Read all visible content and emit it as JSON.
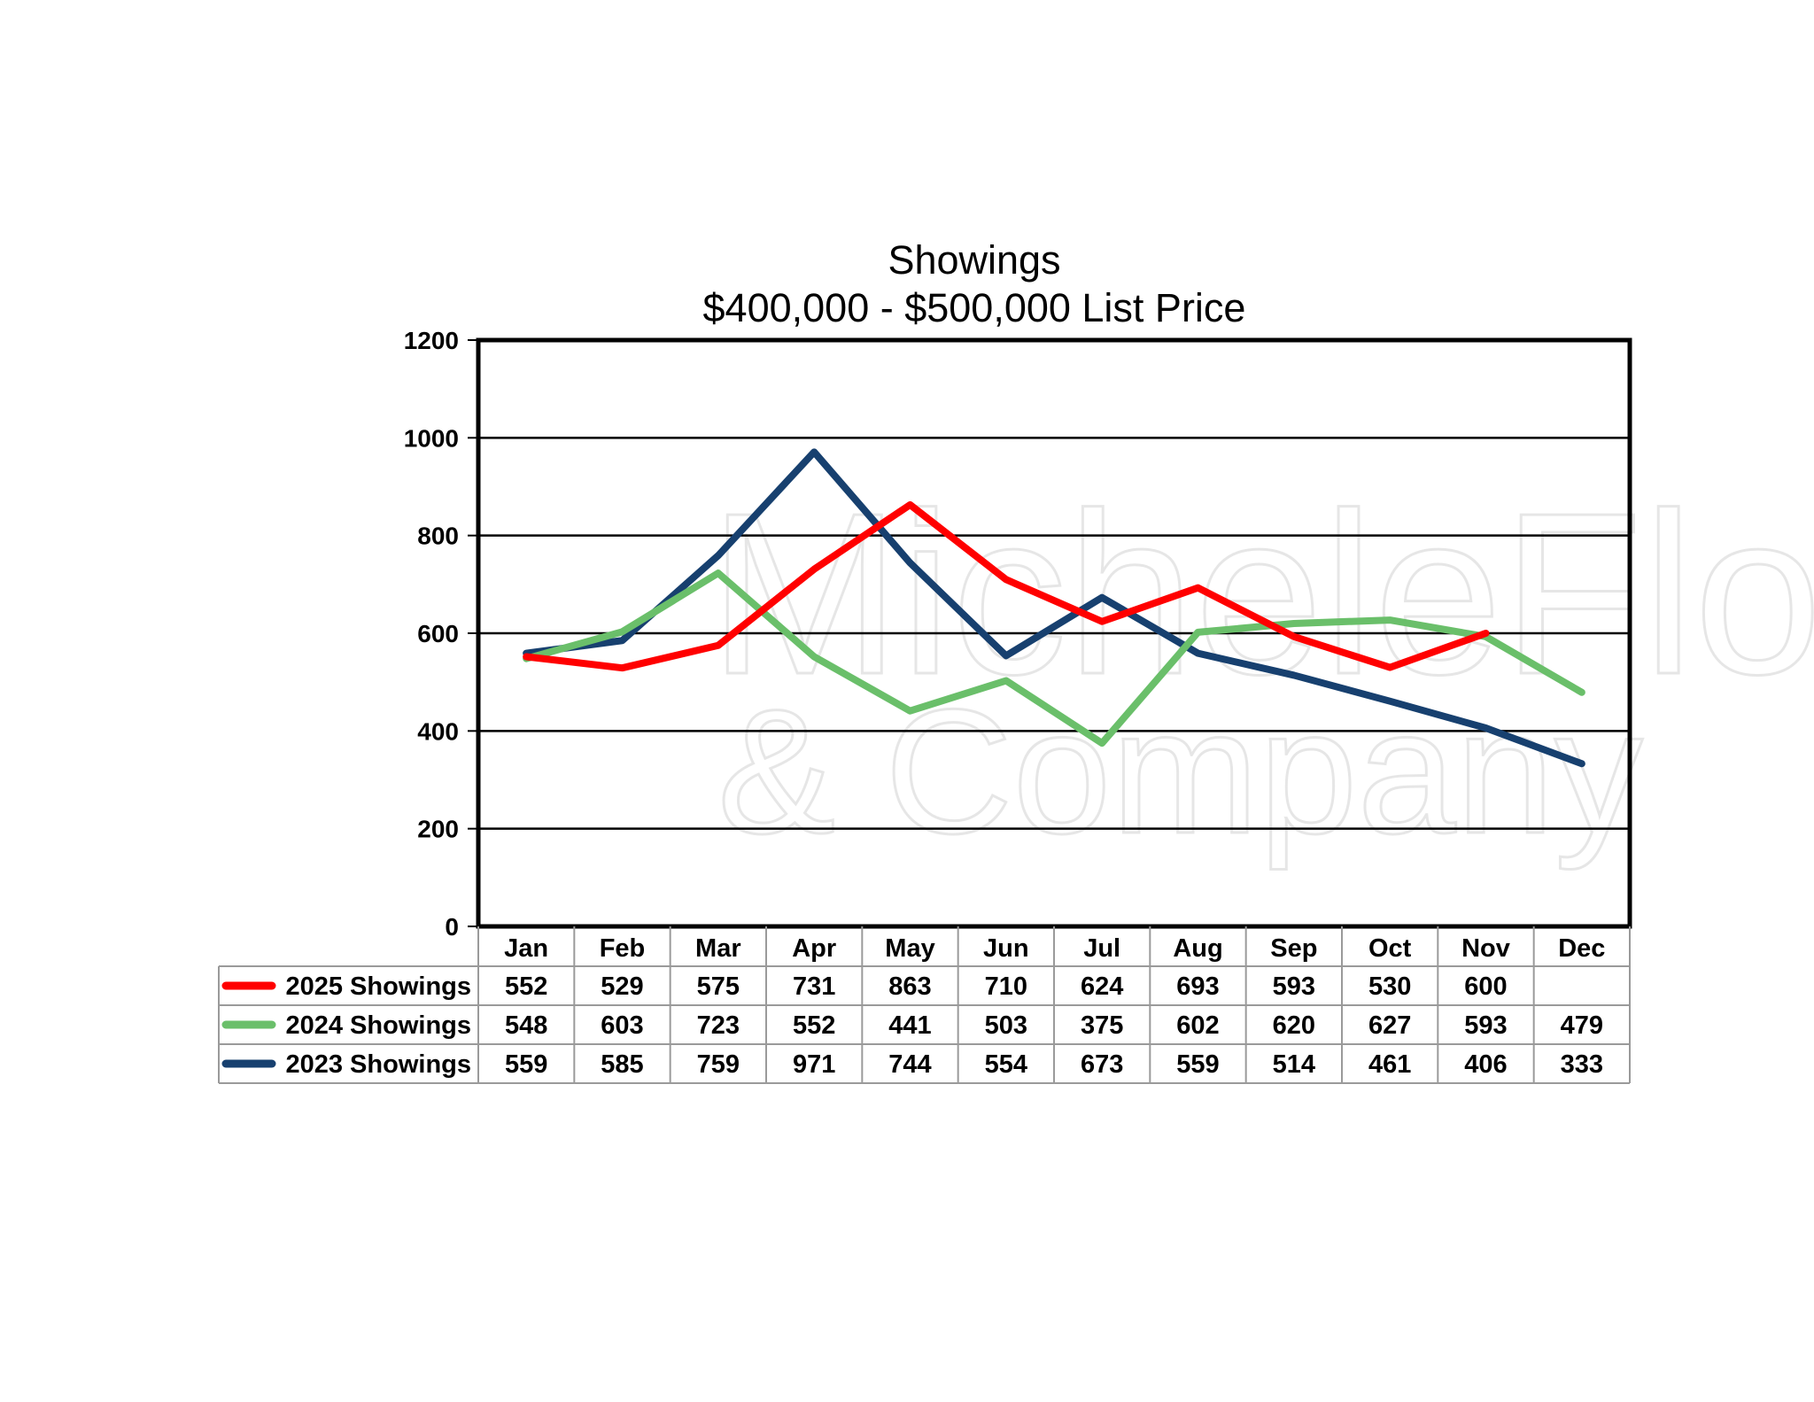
{
  "chart_data": {
    "type": "line",
    "title": "Showings",
    "subtitle": "$400,000 - $500,000 List Price",
    "xlabel": "",
    "ylabel": "",
    "ylim": [
      0,
      1200
    ],
    "yticks": [
      "0",
      "200",
      "400",
      "600",
      "800",
      "1000",
      "1200"
    ],
    "grid": true,
    "legend_placement": "data-table-left",
    "categories": [
      "Jan",
      "Feb",
      "Mar",
      "Apr",
      "May",
      "Jun",
      "Jul",
      "Aug",
      "Sep",
      "Oct",
      "Nov",
      "Dec"
    ],
    "series": [
      {
        "name": "2025 Showings",
        "color": "#ff0000",
        "values": [
          552,
          529,
          575,
          731,
          863,
          710,
          624,
          693,
          593,
          530,
          600,
          null
        ]
      },
      {
        "name": "2024 Showings",
        "color": "#6abf6a",
        "values": [
          548,
          603,
          723,
          552,
          441,
          503,
          375,
          602,
          620,
          627,
          593,
          479
        ]
      },
      {
        "name": "2023 Showings",
        "color": "#17406f",
        "values": [
          559,
          585,
          759,
          971,
          744,
          554,
          673,
          559,
          514,
          461,
          406,
          333
        ]
      }
    ],
    "watermark": [
      "MicheleFlory",
      "& Company"
    ]
  }
}
